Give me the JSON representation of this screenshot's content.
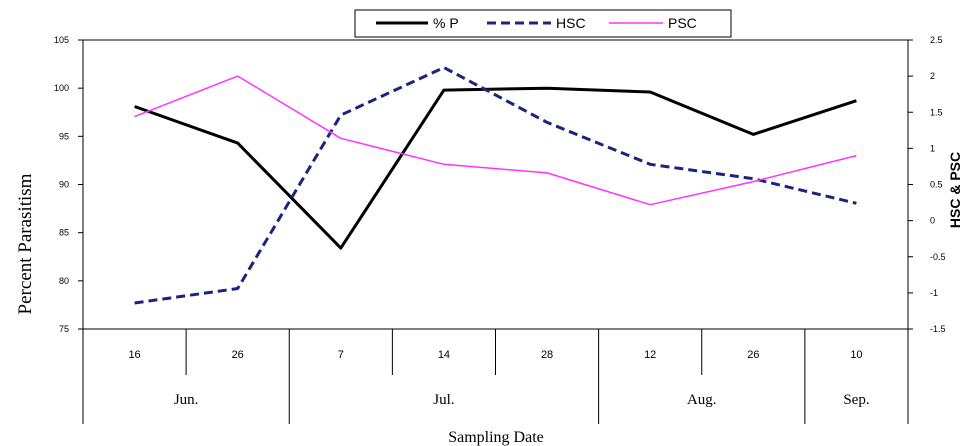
{
  "chart_data": {
    "type": "line",
    "xlabel": "Sampling Date",
    "ylabel_left": "Percent Parasitism",
    "ylabel_right": "HSC & PSC",
    "ylim_left": [
      75,
      105
    ],
    "yticks_left": [
      75,
      80,
      85,
      90,
      95,
      100,
      105
    ],
    "ylim_right": [
      -1.5,
      2.5
    ],
    "yticks_right": [
      "-1.5",
      "-1",
      "-0.5",
      "0",
      "0.5",
      "1",
      "1.5",
      "2",
      "2.5"
    ],
    "categories": [
      "16",
      "26",
      "7",
      "14",
      "28",
      "12",
      "26",
      "10"
    ],
    "months": [
      {
        "label": "Jun.",
        "span": 2
      },
      {
        "label": "Jul.",
        "span": 3
      },
      {
        "label": "Aug.",
        "span": 2
      },
      {
        "label": "Sep.",
        "span": 1
      }
    ],
    "legend_position": "top",
    "series": [
      {
        "name": "% P",
        "axis": "left",
        "color": "#000000",
        "dash": "solid",
        "values": [
          98.1,
          94.3,
          83.4,
          99.8,
          100.0,
          99.6,
          95.2,
          98.7
        ]
      },
      {
        "name": "HSC",
        "axis": "right",
        "color": "#1a237e",
        "dash": "dashed",
        "values": [
          -1.14,
          -0.94,
          1.46,
          2.12,
          1.36,
          0.78,
          0.58,
          0.24
        ]
      },
      {
        "name": "PSC",
        "axis": "right",
        "color": "#ff33ff",
        "dash": "solid",
        "values": [
          1.44,
          2.0,
          1.14,
          0.78,
          0.66,
          0.22,
          0.54,
          0.9
        ]
      }
    ]
  }
}
